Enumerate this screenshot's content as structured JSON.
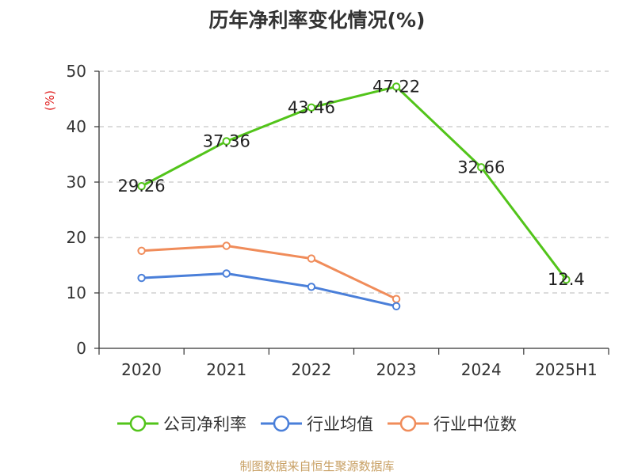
{
  "chart_data": {
    "type": "line",
    "title": "历年净利率变化情况(%)",
    "ylabel": "(%)",
    "xlabel": "",
    "categories": [
      "2020",
      "2021",
      "2022",
      "2023",
      "2024",
      "2025H1"
    ],
    "ylim": [
      0,
      50
    ],
    "yticks": [
      0,
      10,
      20,
      30,
      40,
      50
    ],
    "grid": true,
    "legend_position": "bottom",
    "series": [
      {
        "name": "公司净利率",
        "color": "#52c41a",
        "values": [
          29.26,
          37.36,
          43.46,
          47.22,
          32.66,
          12.4
        ],
        "data_labels": [
          "29.26",
          "37.36",
          "43.46",
          "47.22",
          "32.66",
          "12.4"
        ]
      },
      {
        "name": "行业均值",
        "color": "#4a7fd9",
        "values": [
          12.7,
          13.5,
          11.1,
          7.6,
          null,
          null
        ]
      },
      {
        "name": "行业中位数",
        "color": "#f08c5a",
        "values": [
          17.6,
          18.5,
          16.2,
          8.9,
          null,
          null
        ]
      }
    ]
  },
  "source_note": "制图数据来自恒生聚源数据库"
}
